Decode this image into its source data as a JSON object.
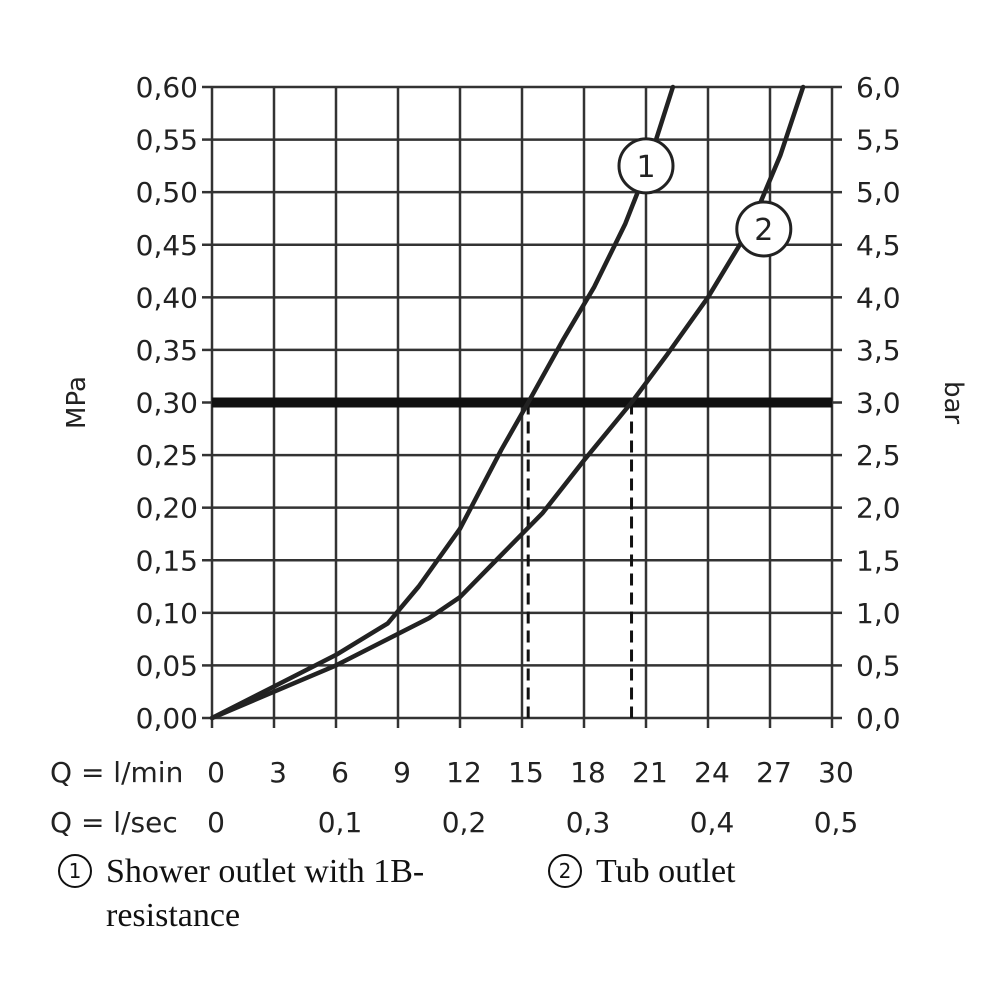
{
  "chart_data": {
    "type": "line",
    "y_left_label": "MPa",
    "y_right_label": "bar",
    "y_left_ticks": [
      "0,00",
      "0,05",
      "0,10",
      "0,15",
      "0,20",
      "0,25",
      "0,30",
      "0,35",
      "0,40",
      "0,45",
      "0,50",
      "0,55",
      "0,60"
    ],
    "y_right_ticks": [
      "0,0",
      "0,5",
      "1,0",
      "1,5",
      "2,0",
      "2,5",
      "3,0",
      "3,5",
      "4,0",
      "4,5",
      "5,0",
      "5,5",
      "6,0"
    ],
    "ylim": [
      0,
      0.6
    ],
    "xlim": [
      0,
      30
    ],
    "x_lmin_prefix": "Q = l/min",
    "x_lmin_ticks": [
      "0",
      "3",
      "6",
      "9",
      "12",
      "15",
      "18",
      "21",
      "24",
      "27",
      "30"
    ],
    "x_lsec_prefix": "Q = l/sec",
    "x_lsec_ticks": [
      {
        "value": 0,
        "label": "0"
      },
      {
        "value": 6,
        "label": "0,1"
      },
      {
        "value": 12,
        "label": "0,2"
      },
      {
        "value": 18,
        "label": "0,3"
      },
      {
        "value": 24,
        "label": "0,4"
      },
      {
        "value": 30,
        "label": "0,5"
      }
    ],
    "grid": true,
    "reference_line": {
      "y": 0.3,
      "style": "bold"
    },
    "drop_lines": [
      15.3,
      20.3
    ],
    "series": [
      {
        "marker": "1",
        "marker_at": {
          "x": 21.0,
          "y": 0.525
        },
        "x": [
          0,
          3,
          6,
          8.5,
          10,
          12,
          14,
          15.3,
          17,
          18.5,
          20,
          21,
          22.3
        ],
        "y": [
          0,
          0.03,
          0.06,
          0.09,
          0.125,
          0.18,
          0.255,
          0.3,
          0.36,
          0.41,
          0.47,
          0.52,
          0.6
        ]
      },
      {
        "marker": "2",
        "marker_at": {
          "x": 26.7,
          "y": 0.465
        },
        "x": [
          0,
          3,
          6,
          8.5,
          10.5,
          12,
          14,
          16,
          18,
          20.3,
          22,
          24,
          26,
          27.5,
          28.6
        ],
        "y": [
          0,
          0.025,
          0.05,
          0.075,
          0.095,
          0.115,
          0.155,
          0.195,
          0.245,
          0.3,
          0.345,
          0.4,
          0.465,
          0.535,
          0.6
        ]
      }
    ]
  },
  "legend": {
    "item1_marker": "1",
    "item1_text": "Shower outlet with 1B-",
    "item1_text_cont": "resistance",
    "item2_marker": "2",
    "item2_text": "Tub outlet"
  }
}
